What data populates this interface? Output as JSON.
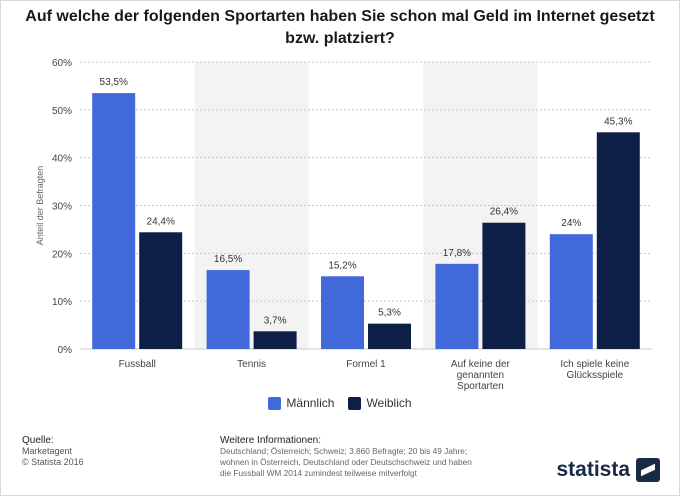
{
  "title": "Auf welche der folgenden Sportarten haben Sie schon mal Geld im Internet gesetzt bzw. platziert?",
  "chart_data": {
    "type": "bar",
    "categories": [
      "Fussball",
      "Tennis",
      "Formel 1",
      "Auf keine der genannten Sportarten",
      "Ich spiele keine Glücksspiele"
    ],
    "series": [
      {
        "name": "Männlich",
        "values": [
          53.5,
          16.5,
          15.2,
          17.8,
          24.0
        ],
        "labels": [
          "53,5%",
          "16,5%",
          "15,2%",
          "17,8%",
          "24%"
        ],
        "color": "#4169d9"
      },
      {
        "name": "Weiblich",
        "values": [
          24.4,
          3.7,
          5.3,
          26.4,
          45.3
        ],
        "labels": [
          "24,4%",
          "3,7%",
          "5,3%",
          "26,4%",
          "45,3%"
        ],
        "color": "#0d1e47"
      }
    ],
    "ylabel": "Anteil der Befragten",
    "ylim": [
      0,
      60
    ],
    "yticks": [
      0,
      10,
      20,
      30,
      40,
      50,
      60
    ],
    "ytick_labels": [
      "0%",
      "10%",
      "20%",
      "30%",
      "40%",
      "50%",
      "60%"
    ],
    "grid": true,
    "legend_position": "bottom"
  },
  "footer": {
    "source_head": "Quelle:",
    "source_line1": "Marketagent",
    "source_line2": "© Statista 2016",
    "info_head": "Weitere Informationen:",
    "info_line1": "Deutschland; Österreich; Schweiz; 3.860 Befragte; 20 bis 49 Jahre;",
    "info_line2": "wohnen in Österreich, Deutschland oder Deutschschweiz und haben",
    "info_line3": "die Fussball WM 2014 zumindest teilweise mitverfolgt"
  },
  "logo_text": "statista"
}
